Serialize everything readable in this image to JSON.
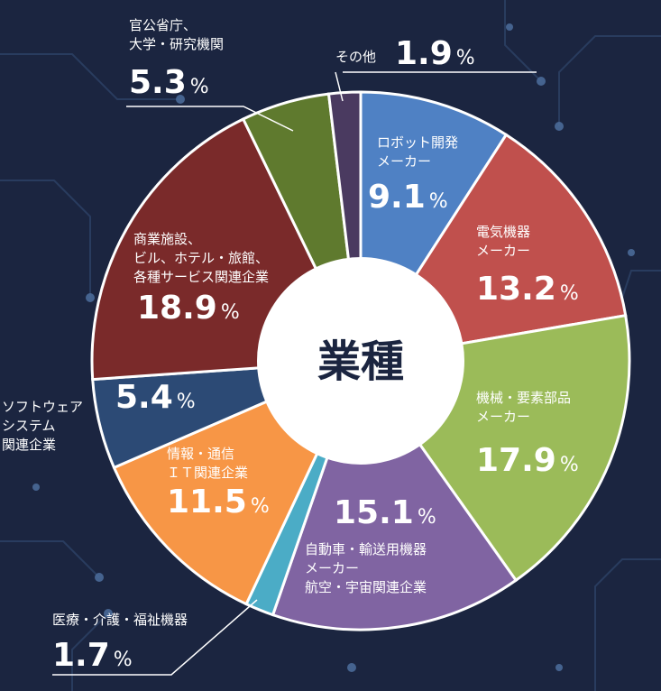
{
  "chart_data": {
    "type": "pie",
    "title": "業種",
    "slices": [
      {
        "label_lines": [
          "ロボット開発",
          "メーカー"
        ],
        "value": 9.1,
        "color": "#4f81c4"
      },
      {
        "label_lines": [
          "電気機器",
          "メーカー"
        ],
        "value": 13.2,
        "color": "#c0504d"
      },
      {
        "label_lines": [
          "機械・要素部品",
          "メーカー"
        ],
        "value": 17.9,
        "color": "#9bbb59"
      },
      {
        "label_lines": [
          "自動車・輸送用機器",
          "メーカー",
          "航空・宇宙関連企業"
        ],
        "value": 15.1,
        "color": "#8064a2"
      },
      {
        "label_lines": [
          "医療・介護・福祉機器"
        ],
        "value": 1.7,
        "color": "#4bacc6"
      },
      {
        "label_lines": [
          "情報・通信",
          "ＩＴ関連企業"
        ],
        "value": 11.5,
        "color": "#f79646"
      },
      {
        "label_lines": [
          "ソフトウェア",
          "システム",
          "関連企業"
        ],
        "value": 5.4,
        "color": "#2c4a75"
      },
      {
        "label_lines": [
          "商業施設、",
          "ビル、ホテル・旅館、",
          "各種サービス関連企業"
        ],
        "value": 18.9,
        "color": "#7a2a2a"
      },
      {
        "label_lines": [
          "官公省庁、",
          "大学・研究機関"
        ],
        "value": 5.3,
        "color": "#5f7a2e"
      },
      {
        "label_lines": [
          "その他"
        ],
        "value": 1.9,
        "color": "#4a3a60"
      }
    ],
    "unit": "%"
  }
}
